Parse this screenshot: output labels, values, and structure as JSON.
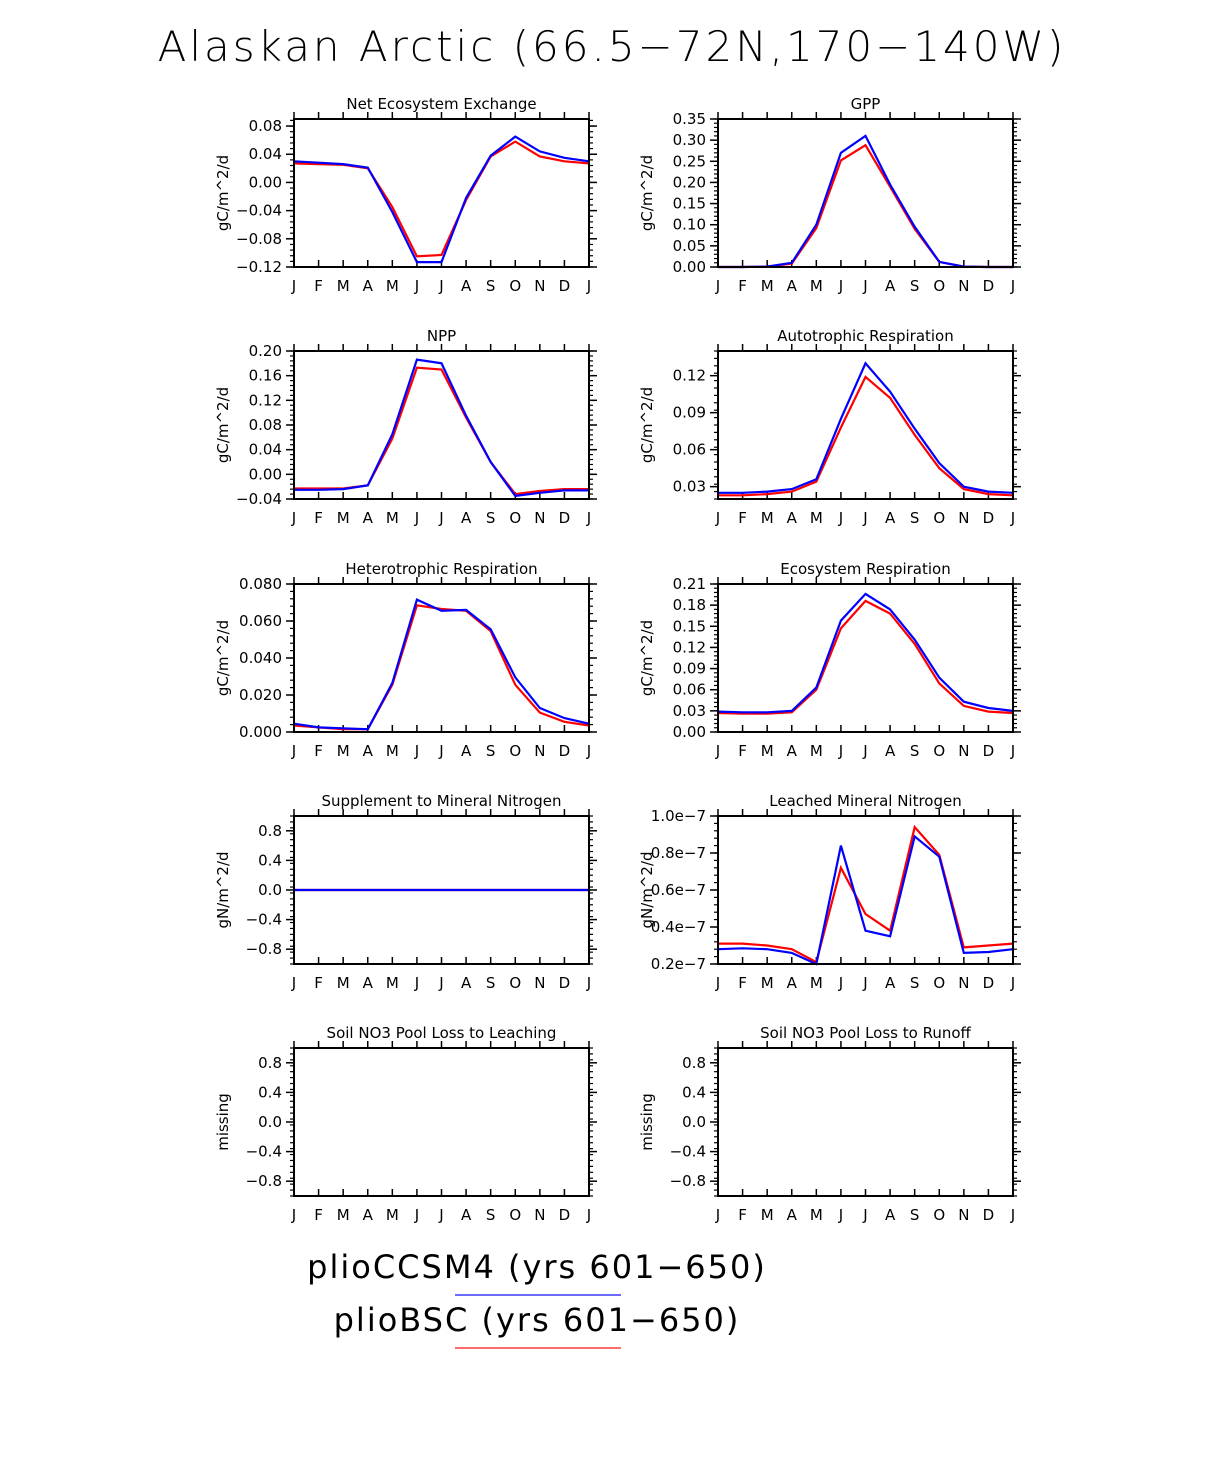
{
  "title": "Alaskan Arctic (66.5−72N,170−140W)",
  "month_labels": [
    "J",
    "F",
    "M",
    "A",
    "M",
    "J",
    "J",
    "A",
    "S",
    "O",
    "N",
    "D",
    "J"
  ],
  "legend": [
    {
      "label": "plioCCSM4 (yrs 601−650)",
      "color": "#0000ff"
    },
    {
      "label": "plioBSC (yrs 601−650)",
      "color": "#ff0000"
    }
  ],
  "chart_data": [
    {
      "type": "line",
      "title": "Net Ecosystem Exchange",
      "ylabel": "gC/m^2/d",
      "ylim": [
        -0.12,
        0.09
      ],
      "yticks": [
        -0.12,
        -0.08,
        -0.04,
        0.0,
        0.04,
        0.08
      ],
      "ytick_labels": [
        "−0.12",
        "−0.08",
        "−0.04",
        "0.00",
        "0.04",
        "0.08"
      ],
      "series": [
        {
          "color": "#ff0000",
          "values": [
            0.027,
            0.026,
            0.025,
            0.02,
            -0.035,
            -0.105,
            -0.103,
            -0.025,
            0.037,
            0.058,
            0.037,
            0.03,
            0.027
          ]
        },
        {
          "color": "#0000ff",
          "values": [
            0.03,
            0.028,
            0.026,
            0.021,
            -0.042,
            -0.113,
            -0.113,
            -0.022,
            0.038,
            0.065,
            0.044,
            0.035,
            0.03
          ]
        }
      ]
    },
    {
      "type": "line",
      "title": "GPP",
      "ylabel": "gC/m^2/d",
      "ylim": [
        0,
        0.35
      ],
      "yticks": [
        0.0,
        0.05,
        0.1,
        0.15,
        0.2,
        0.25,
        0.3,
        0.35
      ],
      "ytick_labels": [
        "0.00",
        "0.05",
        "0.10",
        "0.15",
        "0.20",
        "0.25",
        "0.30",
        "0.35"
      ],
      "series": [
        {
          "color": "#ff0000",
          "values": [
            0.0,
            0.0,
            0.001,
            0.008,
            0.092,
            0.252,
            0.288,
            0.19,
            0.09,
            0.012,
            0.001,
            0.0,
            0.0
          ]
        },
        {
          "color": "#0000ff",
          "values": [
            0.0,
            0.0,
            0.001,
            0.01,
            0.1,
            0.27,
            0.31,
            0.195,
            0.095,
            0.012,
            0.001,
            0.0,
            0.0
          ]
        }
      ]
    },
    {
      "type": "line",
      "title": "NPP",
      "ylabel": "gC/m^2/d",
      "ylim": [
        -0.04,
        0.2
      ],
      "yticks": [
        -0.04,
        0.0,
        0.04,
        0.08,
        0.12,
        0.16,
        0.2
      ],
      "ytick_labels": [
        "−0.04",
        "0.00",
        "0.04",
        "0.08",
        "0.12",
        "0.16",
        "0.20"
      ],
      "series": [
        {
          "color": "#ff0000",
          "values": [
            -0.023,
            -0.023,
            -0.023,
            -0.018,
            0.058,
            0.173,
            0.17,
            0.092,
            0.02,
            -0.032,
            -0.027,
            -0.024,
            -0.024
          ]
        },
        {
          "color": "#0000ff",
          "values": [
            -0.025,
            -0.025,
            -0.024,
            -0.018,
            0.065,
            0.186,
            0.18,
            0.095,
            0.02,
            -0.035,
            -0.03,
            -0.026,
            -0.026
          ]
        }
      ]
    },
    {
      "type": "line",
      "title": "Autotrophic Respiration",
      "ylabel": "gC/m^2/d",
      "ylim": [
        0.02,
        0.14
      ],
      "yticks": [
        0.03,
        0.06,
        0.09,
        0.12
      ],
      "ytick_labels": [
        "0.03",
        "0.06",
        "0.09",
        "0.12"
      ],
      "series": [
        {
          "color": "#ff0000",
          "values": [
            0.023,
            0.023,
            0.024,
            0.026,
            0.034,
            0.078,
            0.119,
            0.102,
            0.072,
            0.045,
            0.028,
            0.024,
            0.023
          ]
        },
        {
          "color": "#0000ff",
          "values": [
            0.025,
            0.025,
            0.026,
            0.028,
            0.036,
            0.085,
            0.13,
            0.107,
            0.077,
            0.049,
            0.03,
            0.026,
            0.025
          ]
        }
      ]
    },
    {
      "type": "line",
      "title": "Heterotrophic Respiration",
      "ylabel": "gC/m^2/d",
      "ylim": [
        0,
        0.08
      ],
      "yticks": [
        0.0,
        0.02,
        0.04,
        0.06,
        0.08
      ],
      "ytick_labels": [
        "0.000",
        "0.020",
        "0.040",
        "0.060",
        "0.080"
      ],
      "series": [
        {
          "color": "#ff0000",
          "values": [
            0.0035,
            0.0025,
            0.0015,
            0.0015,
            0.0255,
            0.0685,
            0.0665,
            0.0655,
            0.0545,
            0.0255,
            0.0105,
            0.0055,
            0.0035
          ]
        },
        {
          "color": "#0000ff",
          "values": [
            0.0045,
            0.0025,
            0.002,
            0.0015,
            0.0265,
            0.0715,
            0.0655,
            0.066,
            0.0555,
            0.0295,
            0.013,
            0.0075,
            0.0045
          ]
        }
      ]
    },
    {
      "type": "line",
      "title": "Ecosystem Respiration",
      "ylabel": "gC/m^2/d",
      "ylim": [
        0,
        0.21
      ],
      "yticks": [
        0.0,
        0.03,
        0.06,
        0.09,
        0.12,
        0.15,
        0.18,
        0.21
      ],
      "ytick_labels": [
        "0.00",
        "0.03",
        "0.06",
        "0.09",
        "0.12",
        "0.15",
        "0.18",
        "0.21"
      ],
      "series": [
        {
          "color": "#ff0000",
          "values": [
            0.027,
            0.026,
            0.026,
            0.028,
            0.06,
            0.147,
            0.186,
            0.168,
            0.125,
            0.069,
            0.037,
            0.029,
            0.027
          ]
        },
        {
          "color": "#0000ff",
          "values": [
            0.029,
            0.028,
            0.028,
            0.03,
            0.063,
            0.158,
            0.196,
            0.174,
            0.131,
            0.077,
            0.043,
            0.034,
            0.03
          ]
        }
      ]
    },
    {
      "type": "line",
      "title": "Supplement to Mineral Nitrogen",
      "ylabel": "gN/m^2/d",
      "ylim": [
        -1.0,
        1.0
      ],
      "yticks": [
        -0.8,
        -0.4,
        0.0,
        0.4,
        0.8
      ],
      "ytick_labels": [
        "−0.8",
        "−0.4",
        "0.0",
        "0.4",
        "0.8"
      ],
      "series": [
        {
          "color": "#ff0000",
          "values": [
            0,
            0,
            0,
            0,
            0,
            0,
            0,
            0,
            0,
            0,
            0,
            0,
            0
          ]
        },
        {
          "color": "#0000ff",
          "values": [
            0,
            0,
            0,
            0,
            0,
            0,
            0,
            0,
            0,
            0,
            0,
            0,
            0
          ]
        }
      ]
    },
    {
      "type": "line",
      "title": "Leached Mineral Nitrogen",
      "ylabel": "gN/m^2/d",
      "ylim": [
        2e-08,
        1e-07
      ],
      "yticks": [
        2e-08,
        4e-08,
        6e-08,
        8e-08,
        1e-07
      ],
      "ytick_labels": [
        "0.2e−7",
        "0.4e−7",
        "0.6e−7",
        "0.8e−7",
        "1.0e−7"
      ],
      "series": [
        {
          "color": "#ff0000",
          "values": [
            3.1e-08,
            3.1e-08,
            3e-08,
            2.8e-08,
            2.1e-08,
            7.2e-08,
            4.7e-08,
            3.8e-08,
            9.4e-08,
            7.9e-08,
            2.9e-08,
            3e-08,
            3.1e-08
          ]
        },
        {
          "color": "#0000ff",
          "values": [
            2.8e-08,
            2.85e-08,
            2.8e-08,
            2.6e-08,
            2e-08,
            8.4e-08,
            3.8e-08,
            3.5e-08,
            8.9e-08,
            7.8e-08,
            2.6e-08,
            2.65e-08,
            2.8e-08
          ]
        }
      ]
    },
    {
      "type": "line",
      "title": "Soil NO3 Pool Loss to Leaching",
      "ylabel": "missing",
      "ylim": [
        -1.0,
        1.0
      ],
      "yticks": [
        -0.8,
        -0.4,
        0.0,
        0.4,
        0.8
      ],
      "ytick_labels": [
        "−0.8",
        "−0.4",
        "0.0",
        "0.4",
        "0.8"
      ],
      "series": []
    },
    {
      "type": "line",
      "title": "Soil NO3 Pool Loss to Runoff",
      "ylabel": "missing",
      "ylim": [
        -1.0,
        1.0
      ],
      "yticks": [
        -0.8,
        -0.4,
        0.0,
        0.4,
        0.8
      ],
      "ytick_labels": [
        "−0.8",
        "−0.4",
        "0.0",
        "0.4",
        "0.8"
      ],
      "series": []
    }
  ]
}
